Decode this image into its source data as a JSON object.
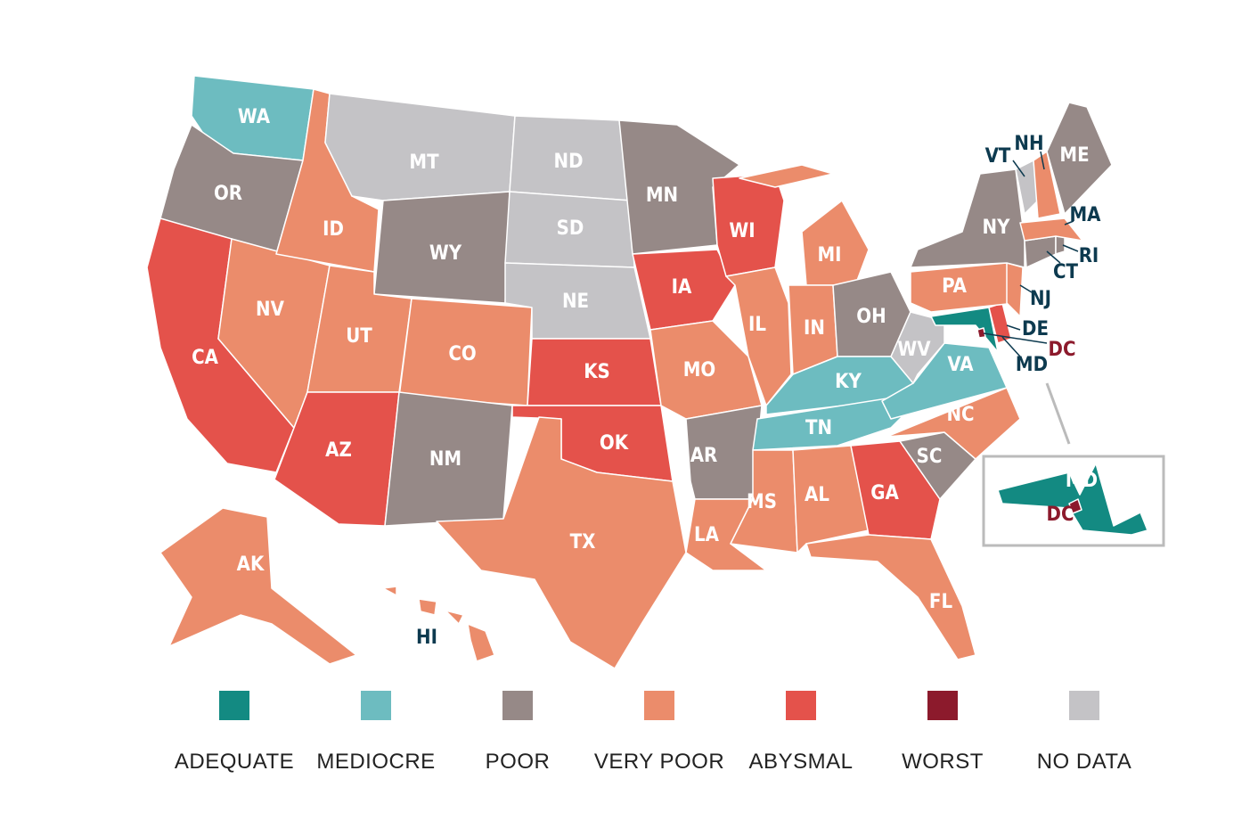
{
  "legend": [
    {
      "label": "ADEQUATE",
      "color": "#138a82"
    },
    {
      "label": "MEDIOCRE",
      "color": "#6dbcc0"
    },
    {
      "label": "POOR",
      "color": "#968987"
    },
    {
      "label": "VERY POOR",
      "color": "#eb8c6b"
    },
    {
      "label": "ABYSMAL",
      "color": "#e4524b"
    },
    {
      "label": "WORST",
      "color": "#8c1a2c"
    },
    {
      "label": "NO DATA",
      "color": "#c4c3c6"
    }
  ],
  "states": [
    {
      "abbr": "WA",
      "rating": "MEDIOCRE"
    },
    {
      "abbr": "OR",
      "rating": "POOR"
    },
    {
      "abbr": "CA",
      "rating": "ABYSMAL"
    },
    {
      "abbr": "NV",
      "rating": "VERY POOR"
    },
    {
      "abbr": "ID",
      "rating": "VERY POOR"
    },
    {
      "abbr": "MT",
      "rating": "NO DATA"
    },
    {
      "abbr": "WY",
      "rating": "POOR"
    },
    {
      "abbr": "UT",
      "rating": "VERY POOR"
    },
    {
      "abbr": "CO",
      "rating": "VERY POOR"
    },
    {
      "abbr": "AZ",
      "rating": "ABYSMAL"
    },
    {
      "abbr": "NM",
      "rating": "POOR"
    },
    {
      "abbr": "ND",
      "rating": "NO DATA"
    },
    {
      "abbr": "SD",
      "rating": "NO DATA"
    },
    {
      "abbr": "NE",
      "rating": "NO DATA"
    },
    {
      "abbr": "KS",
      "rating": "ABYSMAL"
    },
    {
      "abbr": "OK",
      "rating": "ABYSMAL"
    },
    {
      "abbr": "TX",
      "rating": "VERY POOR"
    },
    {
      "abbr": "MN",
      "rating": "POOR"
    },
    {
      "abbr": "IA",
      "rating": "ABYSMAL"
    },
    {
      "abbr": "MO",
      "rating": "VERY POOR"
    },
    {
      "abbr": "AR",
      "rating": "POOR"
    },
    {
      "abbr": "LA",
      "rating": "VERY POOR"
    },
    {
      "abbr": "WI",
      "rating": "ABYSMAL"
    },
    {
      "abbr": "IL",
      "rating": "VERY POOR"
    },
    {
      "abbr": "MI",
      "rating": "VERY POOR"
    },
    {
      "abbr": "IN",
      "rating": "VERY POOR"
    },
    {
      "abbr": "OH",
      "rating": "POOR"
    },
    {
      "abbr": "KY",
      "rating": "MEDIOCRE"
    },
    {
      "abbr": "TN",
      "rating": "MEDIOCRE"
    },
    {
      "abbr": "MS",
      "rating": "VERY POOR"
    },
    {
      "abbr": "AL",
      "rating": "VERY POOR"
    },
    {
      "abbr": "GA",
      "rating": "ABYSMAL"
    },
    {
      "abbr": "FL",
      "rating": "VERY POOR"
    },
    {
      "abbr": "SC",
      "rating": "POOR"
    },
    {
      "abbr": "NC",
      "rating": "VERY POOR"
    },
    {
      "abbr": "VA",
      "rating": "MEDIOCRE"
    },
    {
      "abbr": "WV",
      "rating": "NO DATA"
    },
    {
      "abbr": "MD",
      "rating": "ADEQUATE"
    },
    {
      "abbr": "DE",
      "rating": "ABYSMAL"
    },
    {
      "abbr": "DC",
      "rating": "WORST"
    },
    {
      "abbr": "PA",
      "rating": "VERY POOR"
    },
    {
      "abbr": "NJ",
      "rating": "VERY POOR"
    },
    {
      "abbr": "NY",
      "rating": "POOR"
    },
    {
      "abbr": "CT",
      "rating": "POOR"
    },
    {
      "abbr": "RI",
      "rating": "POOR"
    },
    {
      "abbr": "MA",
      "rating": "VERY POOR"
    },
    {
      "abbr": "VT",
      "rating": "NO DATA"
    },
    {
      "abbr": "NH",
      "rating": "VERY POOR"
    },
    {
      "abbr": "ME",
      "rating": "POOR"
    },
    {
      "abbr": "AK",
      "rating": "VERY POOR"
    },
    {
      "abbr": "HI",
      "rating": "VERY POOR"
    }
  ],
  "inset": {
    "labels": [
      "MD",
      "DC"
    ]
  }
}
